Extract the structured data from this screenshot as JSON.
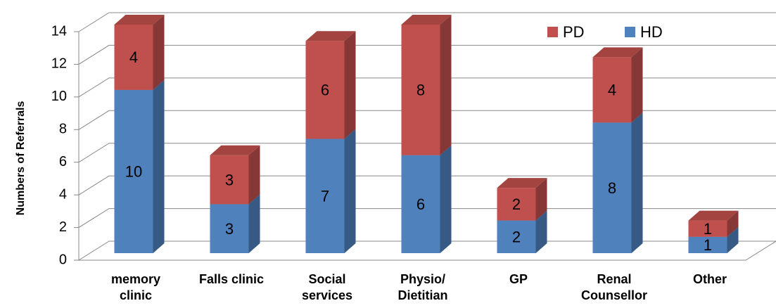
{
  "chart_data": {
    "type": "bar3d_stacked",
    "y_label": "Numbers of Referrals",
    "categories": [
      "memory clinic",
      "Falls clinic",
      "Social services",
      "Physio/ Dietitian",
      "GP",
      "Renal Counsellor",
      "Other"
    ],
    "series": [
      {
        "name": "HD",
        "color": "#4f81bd",
        "values": [
          10,
          3,
          7,
          6,
          2,
          8,
          1
        ]
      },
      {
        "name": "PD",
        "color": "#c0504d",
        "values": [
          4,
          3,
          6,
          8,
          2,
          4,
          1
        ]
      }
    ],
    "ylim": [
      0,
      14
    ],
    "yticks": [
      0,
      2,
      4,
      6,
      8,
      10,
      12,
      14
    ],
    "grid": true,
    "legend": "top-right"
  }
}
